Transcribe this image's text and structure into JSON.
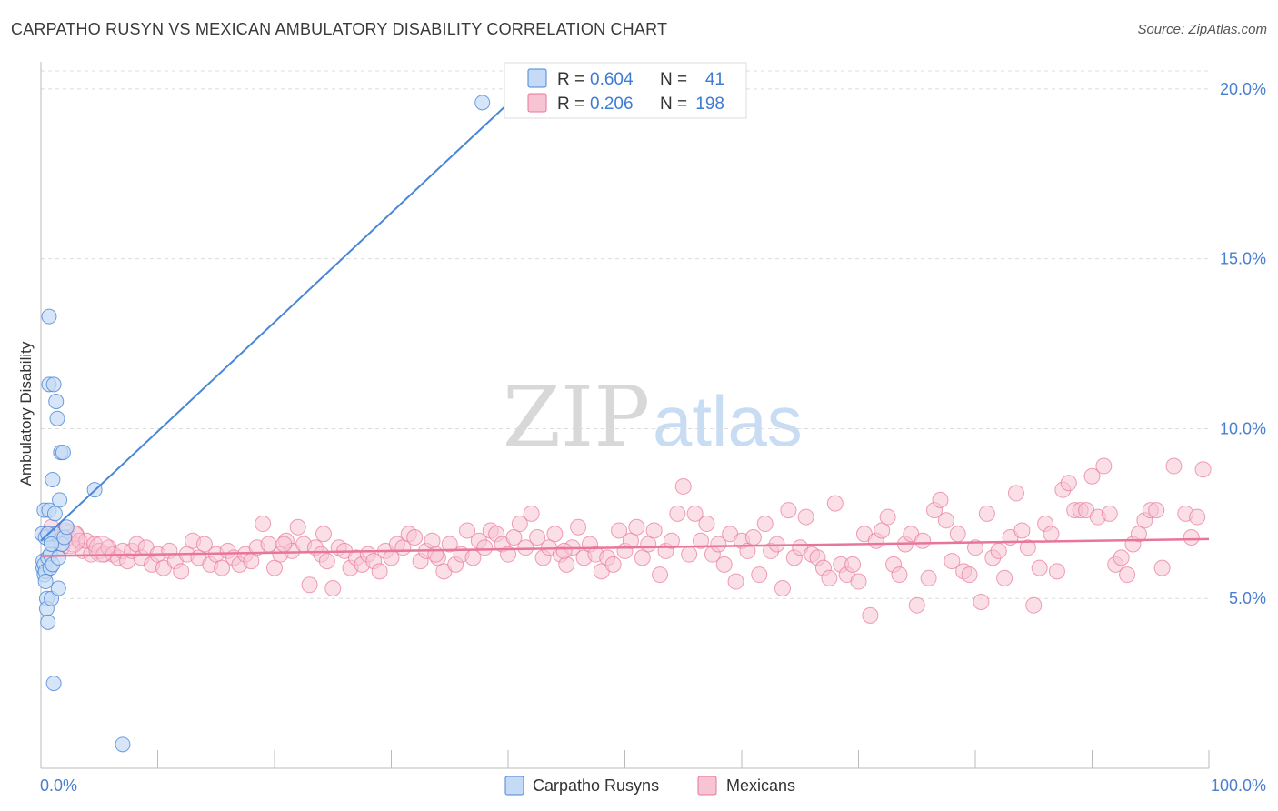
{
  "header": {
    "title": "CARPATHO RUSYN VS MEXICAN AMBULATORY DISABILITY CORRELATION CHART",
    "source": "Source: ZipAtlas.com"
  },
  "watermark": {
    "zip": "ZIP",
    "atlas": "atlas"
  },
  "colors": {
    "blue": "#4a86d8",
    "blue_fill": "#c5dbf5",
    "pink": "#e8769a",
    "pink_fill": "#f7c4d3",
    "axis_label_blue": "#4a7fd0",
    "grid": "#dcdcdc"
  },
  "legend_top": {
    "rows": [
      {
        "r_label": "R =",
        "r_value": "0.604",
        "n_label": "N =",
        "n_value": "41"
      },
      {
        "r_label": "R =",
        "r_value": "0.206",
        "n_label": "N =",
        "n_value": "198"
      }
    ]
  },
  "chart_data": {
    "type": "scatter",
    "title": "CARPATHO RUSYN VS MEXICAN AMBULATORY DISABILITY CORRELATION CHART",
    "xlabel": "",
    "ylabel": "Ambulatory Disability",
    "xlim": [
      0,
      100
    ],
    "ylim": [
      0,
      20.8
    ],
    "x_tick_labels": [
      "0.0%",
      "100.0%"
    ],
    "y_ticks": [
      5,
      10,
      15,
      20
    ],
    "y_tick_labels": [
      "5.0%",
      "10.0%",
      "15.0%",
      "20.0%"
    ],
    "grid": true,
    "legend_position": "bottom",
    "series": [
      {
        "name": "Carpatho Rusyns",
        "color": "#4a86d8",
        "trend": {
          "x": [
            0,
            40.4
          ],
          "y": [
            6.7,
            19.7
          ]
        },
        "points": [
          [
            0.1,
            6.9
          ],
          [
            0.2,
            5.9
          ],
          [
            0.2,
            6.1
          ],
          [
            0.3,
            7.6
          ],
          [
            0.3,
            6.0
          ],
          [
            0.3,
            5.7
          ],
          [
            0.4,
            6.8
          ],
          [
            0.4,
            5.8
          ],
          [
            0.5,
            5.0
          ],
          [
            0.5,
            4.7
          ],
          [
            0.6,
            6.2
          ],
          [
            0.6,
            4.3
          ],
          [
            0.7,
            13.3
          ],
          [
            0.7,
            11.3
          ],
          [
            0.7,
            7.6
          ],
          [
            0.8,
            6.3
          ],
          [
            0.8,
            5.9
          ],
          [
            0.9,
            6.7
          ],
          [
            0.9,
            5.0
          ],
          [
            1.0,
            8.5
          ],
          [
            1.0,
            6.0
          ],
          [
            1.1,
            2.5
          ],
          [
            1.1,
            11.3
          ],
          [
            1.2,
            6.9
          ],
          [
            1.3,
            10.8
          ],
          [
            1.4,
            10.3
          ],
          [
            1.5,
            6.2
          ],
          [
            1.5,
            5.3
          ],
          [
            1.6,
            7.9
          ],
          [
            1.7,
            9.3
          ],
          [
            1.8,
            6.6
          ],
          [
            1.9,
            9.3
          ],
          [
            2.0,
            6.8
          ],
          [
            2.2,
            7.1
          ],
          [
            4.6,
            8.2
          ],
          [
            7.0,
            0.7
          ],
          [
            37.8,
            19.6
          ],
          [
            0.4,
            5.5
          ],
          [
            0.6,
            6.9
          ],
          [
            1.2,
            7.5
          ],
          [
            0.9,
            6.6
          ]
        ]
      },
      {
        "name": "Mexicans",
        "color": "#e8769a",
        "trend": {
          "x": [
            0,
            100
          ],
          "y": [
            6.25,
            6.75
          ]
        },
        "points": [
          [
            0.6,
            6.9
          ],
          [
            0.9,
            7.1
          ],
          [
            1.2,
            6.7
          ],
          [
            1.5,
            6.8
          ],
          [
            1.8,
            6.5
          ],
          [
            2.1,
            7.0
          ],
          [
            2.4,
            6.8
          ],
          [
            2.7,
            6.6
          ],
          [
            3.0,
            6.9
          ],
          [
            3.3,
            6.7
          ],
          [
            3.6,
            6.4
          ],
          [
            3.9,
            6.7
          ],
          [
            4.3,
            6.3
          ],
          [
            4.6,
            6.6
          ],
          [
            5.0,
            6.4
          ],
          [
            5.4,
            6.3
          ],
          [
            5.8,
            6.5
          ],
          [
            6.2,
            6.3
          ],
          [
            6.6,
            6.2
          ],
          [
            7.0,
            6.4
          ],
          [
            7.4,
            6.1
          ],
          [
            7.8,
            6.4
          ],
          [
            8.2,
            6.6
          ],
          [
            8.6,
            6.2
          ],
          [
            9.0,
            6.5
          ],
          [
            9.5,
            6.0
          ],
          [
            10.0,
            6.3
          ],
          [
            10.5,
            5.9
          ],
          [
            11.0,
            6.4
          ],
          [
            11.5,
            6.1
          ],
          [
            12.0,
            5.8
          ],
          [
            12.5,
            6.3
          ],
          [
            13.0,
            6.7
          ],
          [
            13.5,
            6.2
          ],
          [
            14.0,
            6.6
          ],
          [
            14.5,
            6.0
          ],
          [
            15.0,
            6.3
          ],
          [
            15.5,
            5.9
          ],
          [
            16.0,
            6.4
          ],
          [
            16.5,
            6.2
          ],
          [
            17.0,
            6.0
          ],
          [
            17.5,
            6.3
          ],
          [
            18.0,
            6.1
          ],
          [
            18.5,
            6.5
          ],
          [
            19.0,
            7.2
          ],
          [
            19.5,
            6.6
          ],
          [
            20.0,
            5.9
          ],
          [
            20.5,
            6.3
          ],
          [
            21.0,
            6.7
          ],
          [
            21.5,
            6.4
          ],
          [
            22.0,
            7.1
          ],
          [
            22.5,
            6.6
          ],
          [
            23.0,
            5.4
          ],
          [
            23.5,
            6.5
          ],
          [
            24.0,
            6.3
          ],
          [
            24.5,
            6.1
          ],
          [
            25.0,
            5.3
          ],
          [
            25.5,
            6.5
          ],
          [
            26.0,
            6.4
          ],
          [
            26.5,
            5.9
          ],
          [
            27.0,
            6.2
          ],
          [
            27.5,
            6.0
          ],
          [
            28.0,
            6.3
          ],
          [
            28.5,
            6.1
          ],
          [
            29.0,
            5.8
          ],
          [
            29.5,
            6.4
          ],
          [
            30.0,
            6.2
          ],
          [
            30.5,
            6.6
          ],
          [
            31.0,
            6.5
          ],
          [
            31.5,
            6.9
          ],
          [
            32.0,
            6.8
          ],
          [
            32.5,
            6.1
          ],
          [
            33.0,
            6.4
          ],
          [
            33.5,
            6.7
          ],
          [
            34.0,
            6.2
          ],
          [
            34.5,
            5.8
          ],
          [
            35.0,
            6.6
          ],
          [
            35.5,
            6.0
          ],
          [
            36.0,
            6.3
          ],
          [
            36.5,
            7.0
          ],
          [
            37.0,
            6.2
          ],
          [
            37.5,
            6.7
          ],
          [
            38.0,
            6.5
          ],
          [
            38.5,
            7.0
          ],
          [
            39.0,
            6.9
          ],
          [
            39.5,
            6.6
          ],
          [
            40.0,
            6.3
          ],
          [
            40.5,
            6.8
          ],
          [
            41.0,
            7.2
          ],
          [
            41.5,
            6.5
          ],
          [
            42.0,
            7.5
          ],
          [
            42.5,
            6.8
          ],
          [
            43.0,
            6.2
          ],
          [
            43.5,
            6.5
          ],
          [
            44.0,
            6.9
          ],
          [
            44.5,
            6.3
          ],
          [
            45.0,
            6.0
          ],
          [
            45.5,
            6.5
          ],
          [
            46.0,
            7.1
          ],
          [
            46.5,
            6.2
          ],
          [
            47.0,
            6.6
          ],
          [
            47.5,
            6.3
          ],
          [
            48.0,
            5.8
          ],
          [
            48.5,
            6.2
          ],
          [
            49.0,
            6.0
          ],
          [
            49.5,
            7.0
          ],
          [
            50.0,
            6.4
          ],
          [
            50.5,
            6.7
          ],
          [
            51.0,
            7.1
          ],
          [
            51.5,
            6.2
          ],
          [
            52.0,
            6.6
          ],
          [
            52.5,
            7.0
          ],
          [
            53.0,
            5.7
          ],
          [
            53.5,
            6.4
          ],
          [
            54.0,
            6.7
          ],
          [
            54.5,
            7.5
          ],
          [
            55.0,
            8.3
          ],
          [
            55.5,
            6.3
          ],
          [
            56.0,
            7.5
          ],
          [
            56.5,
            6.7
          ],
          [
            57.0,
            7.2
          ],
          [
            57.5,
            6.3
          ],
          [
            58.0,
            6.6
          ],
          [
            58.5,
            6.0
          ],
          [
            59.0,
            6.9
          ],
          [
            59.5,
            5.5
          ],
          [
            60.0,
            6.7
          ],
          [
            60.5,
            6.4
          ],
          [
            61.0,
            6.8
          ],
          [
            61.5,
            5.7
          ],
          [
            62.0,
            7.2
          ],
          [
            62.5,
            6.4
          ],
          [
            63.0,
            6.6
          ],
          [
            63.5,
            5.3
          ],
          [
            64.0,
            7.6
          ],
          [
            64.5,
            6.2
          ],
          [
            65.0,
            6.5
          ],
          [
            65.5,
            7.4
          ],
          [
            66.0,
            6.3
          ],
          [
            66.5,
            6.2
          ],
          [
            67.0,
            5.9
          ],
          [
            67.5,
            5.6
          ],
          [
            68.0,
            7.8
          ],
          [
            68.5,
            6.0
          ],
          [
            69.0,
            5.7
          ],
          [
            69.5,
            6.0
          ],
          [
            70.0,
            5.5
          ],
          [
            70.5,
            6.9
          ],
          [
            71.0,
            4.5
          ],
          [
            71.5,
            6.7
          ],
          [
            72.0,
            7.0
          ],
          [
            72.5,
            7.4
          ],
          [
            73.0,
            6.0
          ],
          [
            73.5,
            5.7
          ],
          [
            74.0,
            6.6
          ],
          [
            74.5,
            6.9
          ],
          [
            75.0,
            4.8
          ],
          [
            75.5,
            6.7
          ],
          [
            76.0,
            5.6
          ],
          [
            76.5,
            7.6
          ],
          [
            77.0,
            7.9
          ],
          [
            77.5,
            7.3
          ],
          [
            78.0,
            6.1
          ],
          [
            78.5,
            6.9
          ],
          [
            79.0,
            5.8
          ],
          [
            79.5,
            5.7
          ],
          [
            80.0,
            6.5
          ],
          [
            80.5,
            4.9
          ],
          [
            81.0,
            7.5
          ],
          [
            81.5,
            6.2
          ],
          [
            82.0,
            6.4
          ],
          [
            82.5,
            5.6
          ],
          [
            83.0,
            6.8
          ],
          [
            83.5,
            8.1
          ],
          [
            84.0,
            7.0
          ],
          [
            84.5,
            6.5
          ],
          [
            85.0,
            4.8
          ],
          [
            85.5,
            5.9
          ],
          [
            86.0,
            7.2
          ],
          [
            86.5,
            6.9
          ],
          [
            87.0,
            5.8
          ],
          [
            87.5,
            8.2
          ],
          [
            88.0,
            8.4
          ],
          [
            88.5,
            7.6
          ],
          [
            89.0,
            7.6
          ],
          [
            89.5,
            7.6
          ],
          [
            90.0,
            8.6
          ],
          [
            90.5,
            7.4
          ],
          [
            91.0,
            8.9
          ],
          [
            91.5,
            7.5
          ],
          [
            92.0,
            6.0
          ],
          [
            92.5,
            6.2
          ],
          [
            93.0,
            5.7
          ],
          [
            93.5,
            6.6
          ],
          [
            94.0,
            6.9
          ],
          [
            94.5,
            7.3
          ],
          [
            95.0,
            7.6
          ],
          [
            95.5,
            7.6
          ],
          [
            96.0,
            5.9
          ],
          [
            97.0,
            8.9
          ],
          [
            98.0,
            7.5
          ],
          [
            98.5,
            6.8
          ],
          [
            99.0,
            7.4
          ],
          [
            99.5,
            8.8
          ],
          [
            20.8,
            6.6
          ],
          [
            24.2,
            6.9
          ],
          [
            33.8,
            6.3
          ],
          [
            44.8,
            6.4
          ]
        ]
      }
    ]
  }
}
